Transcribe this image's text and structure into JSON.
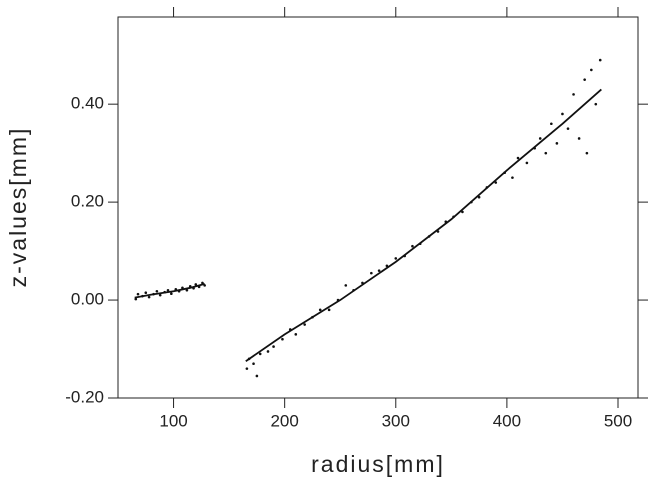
{
  "chart_data": {
    "type": "scatter",
    "x_label": "radius[mm]",
    "y_label": "z-values[mm]",
    "xlim": [
      50,
      518
    ],
    "ylim": [
      -0.2,
      0.578
    ],
    "xticks": [
      100,
      200,
      300,
      400,
      500
    ],
    "yticks": [
      {
        "value": -0.2,
        "label": "-0.20"
      },
      {
        "value": 0,
        "label": "0.00"
      },
      {
        "value": 0.2,
        "label": "0.20"
      },
      {
        "value": 0.4,
        "label": "0.40"
      }
    ],
    "series": [
      {
        "kind": "points",
        "color": "#111111",
        "x": [
          66,
          68,
          72,
          75,
          78,
          82,
          85,
          88,
          92,
          95,
          98,
          102,
          105,
          108,
          112,
          115,
          118,
          120,
          123,
          126,
          128,
          166,
          168,
          172,
          175,
          178,
          185,
          190,
          198,
          205,
          210,
          218,
          225,
          232,
          240,
          248,
          255,
          262,
          270,
          278,
          285,
          292,
          300,
          308,
          315,
          322,
          330,
          338,
          345,
          352,
          360,
          368,
          375,
          382,
          390,
          398,
          405,
          410,
          418,
          425,
          430,
          435,
          440,
          445,
          450,
          455,
          460,
          465,
          470,
          472,
          476,
          480,
          484
        ],
        "values": [
          0.002,
          0.012,
          0.008,
          0.015,
          0.006,
          0.012,
          0.018,
          0.01,
          0.016,
          0.02,
          0.013,
          0.022,
          0.018,
          0.025,
          0.02,
          0.028,
          0.024,
          0.032,
          0.027,
          0.035,
          0.03,
          -0.14,
          -0.12,
          -0.13,
          -0.155,
          -0.11,
          -0.105,
          -0.095,
          -0.08,
          -0.06,
          -0.07,
          -0.05,
          -0.035,
          -0.02,
          -0.02,
          0.0,
          0.03,
          0.02,
          0.035,
          0.055,
          0.06,
          0.07,
          0.085,
          0.09,
          0.11,
          0.115,
          0.13,
          0.14,
          0.16,
          0.17,
          0.18,
          0.2,
          0.21,
          0.23,
          0.24,
          0.26,
          0.25,
          0.29,
          0.28,
          0.31,
          0.33,
          0.3,
          0.36,
          0.32,
          0.38,
          0.35,
          0.42,
          0.33,
          0.45,
          0.3,
          0.47,
          0.4,
          0.49
        ]
      },
      {
        "kind": "line",
        "color": "#111111",
        "x": [
          65,
          80,
          100,
          115,
          128,
          null,
          165,
          200,
          250,
          300,
          350,
          400,
          450,
          485
        ],
        "values": [
          0.005,
          0.011,
          0.018,
          0.025,
          0.033,
          null,
          -0.125,
          -0.07,
          0.0,
          0.078,
          0.165,
          0.265,
          0.36,
          0.43
        ]
      }
    ]
  }
}
